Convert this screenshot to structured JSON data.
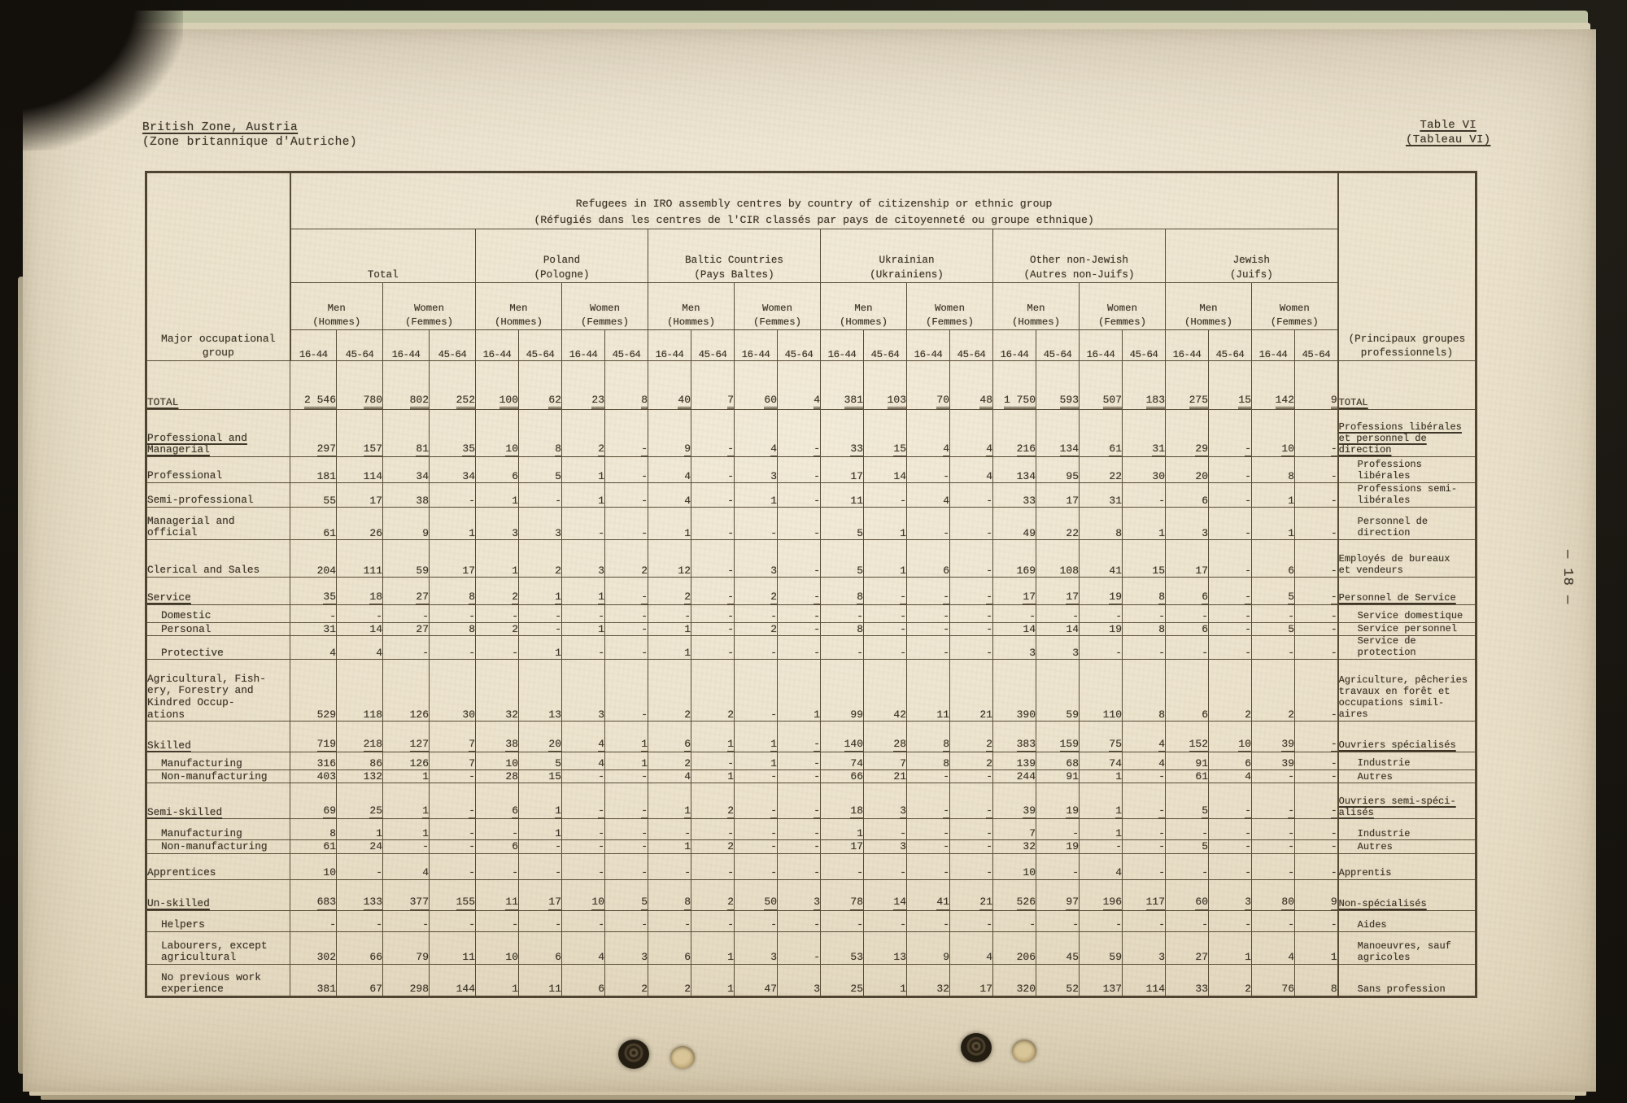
{
  "header": {
    "zone_title": "British Zone, Austria",
    "zone_subtitle": "(Zone britannique d'Autriche)",
    "table_ref": "Table VI",
    "table_ref_fr": "(Tableau VI)",
    "page_number": "— 18 —"
  },
  "table": {
    "title": "Refugees in IRO assembly centres by country of citizenship or ethnic group",
    "title_fr": "(Réfugiés dans les centres de l'CIR classés par pays de citoyenneté ou groupe ethnique)",
    "stub_header": "Major occupational\ngroup",
    "right_header": "(Principaux groupes\nprofessionnels)",
    "col_groups": [
      {
        "en": "Total",
        "fr": ""
      },
      {
        "en": "Poland",
        "fr": "(Pologne)"
      },
      {
        "en": "Baltic Countries",
        "fr": "(Pays Baltes)"
      },
      {
        "en": "Ukrainian",
        "fr": "(Ukrainiens)"
      },
      {
        "en": "Other non-Jewish",
        "fr": "(Autres non-Juifs)"
      },
      {
        "en": "Jewish",
        "fr": "(Juifs)"
      }
    ],
    "sex_men": "Men\n(Hommes)",
    "sex_women": "Women\n(Femmes)",
    "ages": [
      "16-44",
      "45-64"
    ],
    "rows": [
      {
        "label": "TOTAL",
        "fr": "TOTAL",
        "u": true,
        "indent_en": false,
        "indent_fr": false,
        "values": [
          "2 546",
          "780",
          "802",
          "252",
          "100",
          "62",
          "23",
          "8",
          "40",
          "7",
          "60",
          "4",
          "381",
          "103",
          "70",
          "48",
          "1 750",
          "593",
          "507",
          "183",
          "275",
          "15",
          "142",
          "9"
        ]
      },
      {
        "label": "Professional and\nManagerial",
        "fr": "Professions libérales\net personnel de\ndirection",
        "u": true,
        "indent_en": false,
        "indent_fr": false,
        "values": [
          "297",
          "157",
          "81",
          "35",
          "10",
          "8",
          "2",
          "-",
          "9",
          "-",
          "4",
          "-",
          "33",
          "15",
          "4",
          "4",
          "216",
          "134",
          "61",
          "31",
          "29",
          "-",
          "10",
          "-"
        ]
      },
      {
        "label": "Professional",
        "fr": "Professions libérales",
        "u": false,
        "indent_en": false,
        "indent_fr": true,
        "values": [
          "181",
          "114",
          "34",
          "34",
          "6",
          "5",
          "1",
          "-",
          "4",
          "-",
          "3",
          "-",
          "17",
          "14",
          "-",
          "4",
          "134",
          "95",
          "22",
          "30",
          "20",
          "-",
          "8",
          "-"
        ]
      },
      {
        "label": "Semi-professional",
        "fr": "Professions semi-\nlibérales",
        "u": false,
        "indent_en": false,
        "indent_fr": true,
        "values": [
          "55",
          "17",
          "38",
          "-",
          "1",
          "-",
          "1",
          "-",
          "4",
          "-",
          "1",
          "-",
          "11",
          "-",
          "4",
          "-",
          "33",
          "17",
          "31",
          "-",
          "6",
          "-",
          "1",
          "-"
        ]
      },
      {
        "label": "Managerial and\nofficial",
        "fr": "Personnel de\ndirection",
        "u": false,
        "indent_en": false,
        "indent_fr": true,
        "values": [
          "61",
          "26",
          "9",
          "1",
          "3",
          "3",
          "-",
          "-",
          "1",
          "-",
          "-",
          "-",
          "5",
          "1",
          "-",
          "-",
          "49",
          "22",
          "8",
          "1",
          "3",
          "-",
          "1",
          "-"
        ]
      },
      {
        "label": "Clerical and Sales",
        "fr": "Employés de bureaux\net vendeurs",
        "u": false,
        "indent_en": false,
        "indent_fr": false,
        "values": [
          "204",
          "111",
          "59",
          "17",
          "1",
          "2",
          "3",
          "2",
          "12",
          "-",
          "3",
          "-",
          "5",
          "1",
          "6",
          "-",
          "169",
          "108",
          "41",
          "15",
          "17",
          "-",
          "6",
          "-"
        ]
      },
      {
        "label": "Service",
        "fr": "Personnel de Service",
        "u": true,
        "indent_en": false,
        "indent_fr": false,
        "values": [
          "35",
          "18",
          "27",
          "8",
          "2",
          "1",
          "1",
          "-",
          "2",
          "-",
          "2",
          "-",
          "8",
          "-",
          "-",
          "-",
          "17",
          "17",
          "19",
          "8",
          "6",
          "-",
          "5",
          "-"
        ]
      },
      {
        "label": "Domestic",
        "fr": "Service domestique",
        "u": false,
        "indent_en": true,
        "indent_fr": true,
        "values": [
          "-",
          "-",
          "-",
          "-",
          "-",
          "-",
          "-",
          "-",
          "-",
          "-",
          "-",
          "-",
          "-",
          "-",
          "-",
          "-",
          "-",
          "-",
          "-",
          "-",
          "-",
          "-",
          "-",
          "-"
        ]
      },
      {
        "label": "Personal",
        "fr": "Service personnel",
        "u": false,
        "indent_en": true,
        "indent_fr": true,
        "values": [
          "31",
          "14",
          "27",
          "8",
          "2",
          "-",
          "1",
          "-",
          "1",
          "-",
          "2",
          "-",
          "8",
          "-",
          "-",
          "-",
          "14",
          "14",
          "19",
          "8",
          "6",
          "-",
          "5",
          "-"
        ]
      },
      {
        "label": "Protective",
        "fr": "Service de protection",
        "u": false,
        "indent_en": true,
        "indent_fr": true,
        "values": [
          "4",
          "4",
          "-",
          "-",
          "-",
          "1",
          "-",
          "-",
          "1",
          "-",
          "-",
          "-",
          "-",
          "-",
          "-",
          "-",
          "3",
          "3",
          "-",
          "-",
          "-",
          "-",
          "-",
          "-"
        ]
      },
      {
        "label": "Agricultural, Fish-\nery, Forestry and\nKindred Occup-\nations",
        "fr": "Agriculture, pêcheries\ntravaux en forêt et\noccupations simil-\naires",
        "u": false,
        "indent_en": false,
        "indent_fr": false,
        "values": [
          "529",
          "118",
          "126",
          "30",
          "32",
          "13",
          "3",
          "-",
          "2",
          "2",
          "-",
          "1",
          "99",
          "42",
          "11",
          "21",
          "390",
          "59",
          "110",
          "8",
          "6",
          "2",
          "2",
          "-"
        ]
      },
      {
        "label": "Skilled",
        "fr": "Ouvriers spécialisés",
        "u": true,
        "indent_en": false,
        "indent_fr": false,
        "values": [
          "719",
          "218",
          "127",
          "7",
          "38",
          "20",
          "4",
          "1",
          "6",
          "1",
          "1",
          "-",
          "140",
          "28",
          "8",
          "2",
          "383",
          "159",
          "75",
          "4",
          "152",
          "10",
          "39",
          "-"
        ]
      },
      {
        "label": "Manufacturing",
        "fr": "Industrie",
        "u": false,
        "indent_en": true,
        "indent_fr": true,
        "values": [
          "316",
          "86",
          "126",
          "7",
          "10",
          "5",
          "4",
          "1",
          "2",
          "-",
          "1",
          "-",
          "74",
          "7",
          "8",
          "2",
          "139",
          "68",
          "74",
          "4",
          "91",
          "6",
          "39",
          "-"
        ]
      },
      {
        "label": "Non-manufacturing",
        "fr": "Autres",
        "u": false,
        "indent_en": true,
        "indent_fr": true,
        "values": [
          "403",
          "132",
          "1",
          "-",
          "28",
          "15",
          "-",
          "-",
          "4",
          "1",
          "-",
          "-",
          "66",
          "21",
          "-",
          "-",
          "244",
          "91",
          "1",
          "-",
          "61",
          "4",
          "-",
          "-"
        ]
      },
      {
        "label": "Semi-skilled",
        "fr": "Ouvriers semi-spéci-\nalisés",
        "u": true,
        "indent_en": false,
        "indent_fr": false,
        "values": [
          "69",
          "25",
          "1",
          "-",
          "6",
          "1",
          "-",
          "-",
          "1",
          "2",
          "-",
          "-",
          "18",
          "3",
          "-",
          "-",
          "39",
          "19",
          "1",
          "-",
          "5",
          "-",
          "-",
          "-"
        ]
      },
      {
        "label": "Manufacturing",
        "fr": "Industrie",
        "u": false,
        "indent_en": true,
        "indent_fr": true,
        "values": [
          "8",
          "1",
          "1",
          "-",
          "-",
          "1",
          "-",
          "-",
          "-",
          "-",
          "-",
          "-",
          "1",
          "-",
          "-",
          "-",
          "7",
          "-",
          "1",
          "-",
          "-",
          "-",
          "-",
          "-"
        ]
      },
      {
        "label": "Non-manufacturing",
        "fr": "Autres",
        "u": false,
        "indent_en": true,
        "indent_fr": true,
        "values": [
          "61",
          "24",
          "-",
          "-",
          "6",
          "-",
          "-",
          "-",
          "1",
          "2",
          "-",
          "-",
          "17",
          "3",
          "-",
          "-",
          "32",
          "19",
          "-",
          "-",
          "5",
          "-",
          "-",
          "-"
        ]
      },
      {
        "label": "Apprentices",
        "fr": "Apprentis",
        "u": false,
        "indent_en": false,
        "indent_fr": false,
        "values": [
          "10",
          "-",
          "4",
          "-",
          "-",
          "-",
          "-",
          "-",
          "-",
          "-",
          "-",
          "-",
          "-",
          "-",
          "-",
          "-",
          "10",
          "-",
          "4",
          "-",
          "-",
          "-",
          "-",
          "-"
        ]
      },
      {
        "label": "Un-skilled",
        "fr": "Non-spécialisés",
        "u": true,
        "indent_en": false,
        "indent_fr": false,
        "values": [
          "683",
          "133",
          "377",
          "155",
          "11",
          "17",
          "10",
          "5",
          "8",
          "2",
          "50",
          "3",
          "78",
          "14",
          "41",
          "21",
          "526",
          "97",
          "196",
          "117",
          "60",
          "3",
          "80",
          "9"
        ]
      },
      {
        "label": "Helpers",
        "fr": "Aides",
        "u": false,
        "indent_en": true,
        "indent_fr": true,
        "values": [
          "-",
          "-",
          "-",
          "-",
          "-",
          "-",
          "-",
          "-",
          "-",
          "-",
          "-",
          "-",
          "-",
          "-",
          "-",
          "-",
          "-",
          "-",
          "-",
          "-",
          "-",
          "-",
          "-",
          "-"
        ]
      },
      {
        "label": "Labourers, except\nagricultural",
        "fr": "Manoeuvres, sauf\nagricoles",
        "u": false,
        "indent_en": true,
        "indent_fr": true,
        "values": [
          "302",
          "66",
          "79",
          "11",
          "10",
          "6",
          "4",
          "3",
          "6",
          "1",
          "3",
          "-",
          "53",
          "13",
          "9",
          "4",
          "206",
          "45",
          "59",
          "3",
          "27",
          "1",
          "4",
          "1"
        ]
      },
      {
        "label": "No previous work\nexperience",
        "fr": "Sans profession",
        "u": false,
        "indent_en": true,
        "indent_fr": true,
        "values": [
          "381",
          "67",
          "298",
          "144",
          "1",
          "11",
          "6",
          "2",
          "2",
          "1",
          "47",
          "3",
          "25",
          "1",
          "32",
          "17",
          "320",
          "52",
          "137",
          "114",
          "33",
          "2",
          "76",
          "8"
        ]
      }
    ]
  }
}
